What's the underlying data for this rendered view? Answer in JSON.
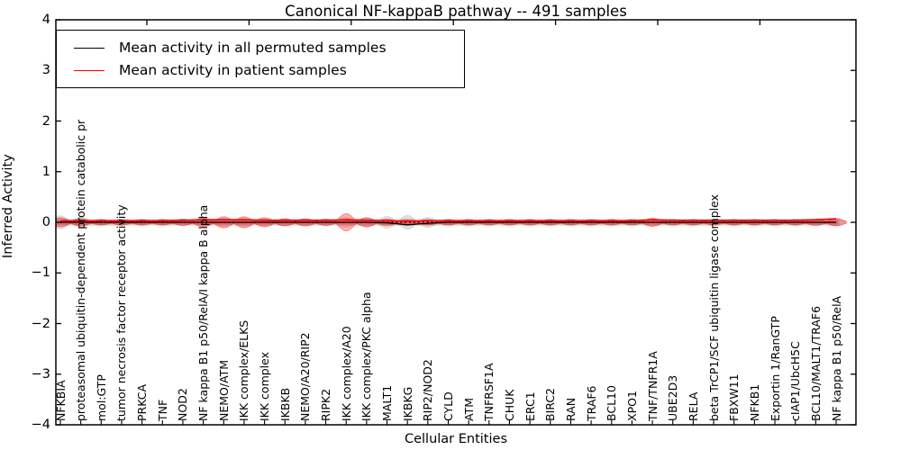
{
  "figure": {
    "title": "Canonical NF-kappaB pathway -- 491 samples",
    "xlabel": "Cellular Entities",
    "ylabel": "Inferred Activity"
  },
  "legend": {
    "items": [
      {
        "label": "Mean activity in all permuted samples",
        "color": "#000000"
      },
      {
        "label": "Mean activity in patient samples",
        "color": "#ff0000"
      }
    ]
  },
  "chart_data": {
    "type": "violin",
    "title": "Canonical NF-kappaB pathway -- 491 samples",
    "xlabel": "Cellular Entities",
    "ylabel": "Inferred Activity",
    "ylim": [
      -4,
      4
    ],
    "ytick_labels": [
      "4",
      "3",
      "2",
      "1",
      "0",
      "−1",
      "−2",
      "−3",
      "−4"
    ],
    "yticks": [
      4,
      3,
      2,
      1,
      0,
      -1,
      -2,
      -3,
      -4
    ],
    "grid": false,
    "legend_position": "upper left",
    "zero_line": {
      "y": 0,
      "style": "dotted",
      "color": "#000000"
    },
    "colors": {
      "permuted_line": "#000000",
      "patient_line": "#ff0000",
      "permuted_violin_fill": "rgba(0,0,0,0.13)",
      "patient_violin_fill": "rgba(255,0,0,0.30)",
      "patient_violin_edge": "rgba(255,0,0,0.45)"
    },
    "categories": [
      "NFKBIA",
      "proteasomal ubiquitin-dependent protein catabolic pr",
      "mol:GTP",
      "tumor necrosis factor receptor activity",
      "PRKCA",
      "TNF",
      "NOD2",
      "NF kappa B1 p50/RelA/I kappa B alpha",
      "NEMO/ATM",
      "IKK complex/ELKS",
      "IKK complex",
      "IKBKB",
      "NEMO/A20/RIP2",
      "RIPK2",
      "IKK complex/A20",
      "IKK complex/PKC alpha",
      "MALT1",
      "IKBKG",
      "RIP2/NOD2",
      "CYLD",
      "ATM",
      "TNFRSF1A",
      "CHUK",
      "ERC1",
      "BIRC2",
      "RAN",
      "TRAF6",
      "BCL10",
      "XPO1",
      "TNF/TNFR1A",
      "UBE2D3",
      "RELA",
      "beta TrCP1/SCF ubiquitin ligase complex",
      "FBXW11",
      "NFKB1",
      "Exportin 1/RanGTP",
      "cIAP1/UbcH5C",
      "BCL10/MALT1/TRAF6",
      "NF kappa B1 p50/RelA"
    ],
    "series": [
      {
        "name": "Mean activity in all permuted samples",
        "color": "#000000",
        "values": [
          0,
          0,
          0,
          0,
          0,
          0,
          0,
          0,
          0,
          0,
          0,
          0,
          0,
          0,
          0,
          0,
          -0.01,
          -0.05,
          -0.02,
          0,
          0,
          0,
          0,
          0,
          0,
          0,
          0,
          0,
          0,
          0,
          0,
          0,
          0,
          0,
          0,
          0,
          0,
          0,
          0
        ]
      },
      {
        "name": "Mean activity in patient samples",
        "color": "#ff0000",
        "values": [
          0.03,
          0.03,
          0.03,
          0.03,
          0.03,
          0.03,
          0.04,
          0.05,
          0.05,
          0.05,
          0.04,
          0.04,
          0.04,
          0.04,
          0.05,
          0.04,
          0.03,
          0.02,
          0.03,
          0.03,
          0.03,
          0.03,
          0.03,
          0.03,
          0.03,
          0.03,
          0.03,
          0.03,
          0.03,
          0.05,
          0.04,
          0.04,
          0.04,
          0.04,
          0.04,
          0.04,
          0.04,
          0.05,
          0.07
        ]
      }
    ],
    "violins": [
      {
        "name": "permuted samples distribution (half-width)",
        "fill": "rgba(0,0,0,0.13)",
        "half_widths": [
          0.14,
          0.11,
          0.07,
          0.07,
          0.07,
          0.07,
          0.07,
          0.08,
          0.09,
          0.09,
          0.08,
          0.08,
          0.08,
          0.07,
          0.11,
          0.1,
          0.13,
          0.15,
          0.11,
          0.07,
          0.07,
          0.07,
          0.07,
          0.07,
          0.07,
          0.07,
          0.07,
          0.07,
          0.07,
          0.08,
          0.07,
          0.07,
          0.07,
          0.07,
          0.07,
          0.07,
          0.07,
          0.07,
          0.08
        ]
      },
      {
        "name": "patient samples distribution (half-width)",
        "fill": "rgba(255,0,0,0.30)",
        "half_widths": [
          0.09,
          0.07,
          0.05,
          0.05,
          0.05,
          0.05,
          0.06,
          0.09,
          0.11,
          0.11,
          0.09,
          0.07,
          0.07,
          0.06,
          0.17,
          0.09,
          0.06,
          0.05,
          0.05,
          0.05,
          0.05,
          0.05,
          0.05,
          0.05,
          0.05,
          0.05,
          0.05,
          0.05,
          0.05,
          0.08,
          0.05,
          0.05,
          0.05,
          0.05,
          0.05,
          0.05,
          0.05,
          0.06,
          0.07
        ]
      }
    ]
  }
}
